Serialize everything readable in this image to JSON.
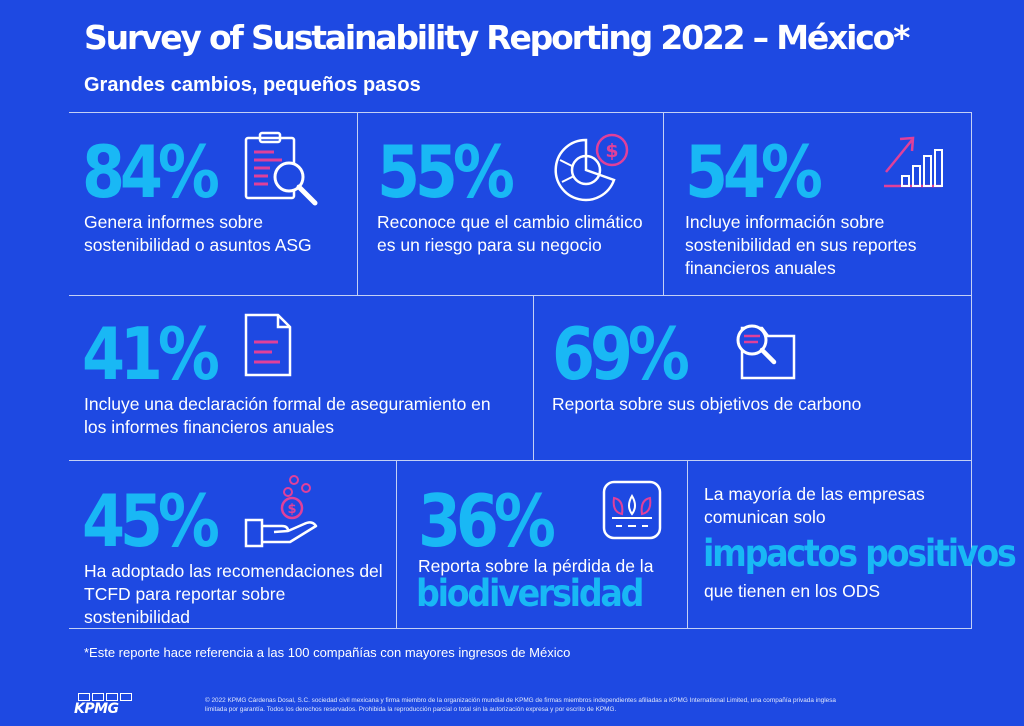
{
  "title": "Survey of Sustainability Reporting 2022 – México*",
  "subtitle": "Grandes cambios, pequeños pasos",
  "stats": [
    {
      "value": "84%",
      "description": "Genera informes sobre sostenibilidad o asuntos ASG",
      "icon": "clipboard-magnifier-icon"
    },
    {
      "value": "55%",
      "description": "Reconoce que el cambio climático es un riesgo para su negocio",
      "icon": "pie-chart-dollar-icon"
    },
    {
      "value": "54%",
      "description": "Incluye información sobre sostenibilidad en sus reportes financieros anuales",
      "icon": "rising-bar-chart-icon"
    },
    {
      "value": "41%",
      "description": "Incluye una declaración formal de aseguramiento en los informes financieros anuales",
      "icon": "document-icon"
    },
    {
      "value": "69%",
      "description": "Reporta sobre sus objetivos de carbono",
      "icon": "folder-magnifier-icon"
    },
    {
      "value": "45%",
      "description": "Ha adoptado las recomendaciones del TCFD para reportar sobre sostenibilidad",
      "icon": "hand-coins-icon"
    },
    {
      "value": "36%",
      "description": "Reporta sobre la pérdida de la",
      "highlight": "biodiversidad",
      "icon": "plant-sprout-icon"
    }
  ],
  "last_block": {
    "intro": "La mayoría de las empresas comunican solo",
    "highlight": "impactos positivos",
    "outro": "que tienen en los ODS"
  },
  "footnote": "*Este reporte hace referencia a las 100 compañías con mayores ingresos de México",
  "logo": "KPMG",
  "legal": "© 2022 KPMG Cárdenas Dosal, S.C. sociedad civil mexicana y firma miembro de la organización mundial de KPMG de firmas miembros independientes afiliadas a KPMG International Limited, una compañía privada inglesa limitada por garantía. Todos los derechos reservados. Prohibida la reproducción parcial o total sin la autorización expresa y por escrito de KPMG.",
  "colors": {
    "background": "#1e49e2",
    "accent": "#19b8f5",
    "icon_accent": "#e0409a"
  }
}
